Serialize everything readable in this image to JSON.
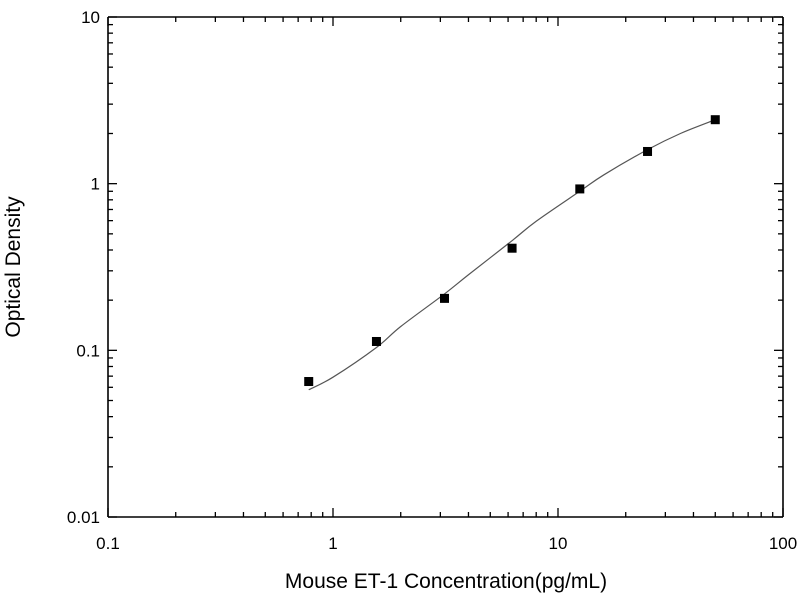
{
  "chart_data": {
    "type": "scatter",
    "title": "",
    "xlabel": "Mouse ET-1 Concentration(pg/mL)",
    "ylabel": "Optical Density",
    "x_scale": "log",
    "y_scale": "log",
    "xlim": [
      0.1,
      100
    ],
    "ylim": [
      0.01,
      10
    ],
    "x_ticks": [
      0.1,
      1,
      10,
      100
    ],
    "x_tick_labels": [
      "0.1",
      "1",
      "10",
      "100"
    ],
    "y_ticks": [
      0.01,
      0.1,
      1,
      10
    ],
    "y_tick_labels": [
      "0.01",
      "0.1",
      "1",
      "10"
    ],
    "grid": false,
    "legend": "none",
    "series": [
      {
        "marker": "square",
        "x": [
          0.78,
          1.56,
          3.13,
          6.25,
          12.5,
          25,
          50
        ],
        "y": [
          0.065,
          0.113,
          0.205,
          0.41,
          0.93,
          1.56,
          2.42
        ]
      }
    ],
    "fit_curve": {
      "type": "sigmoidal fit",
      "x": [
        0.78,
        1.0,
        1.56,
        2.0,
        3.13,
        4.0,
        6.25,
        8.0,
        12.5,
        16.0,
        25,
        35,
        50
      ],
      "y": [
        0.058,
        0.069,
        0.104,
        0.139,
        0.218,
        0.284,
        0.455,
        0.595,
        0.9,
        1.13,
        1.6,
        2.0,
        2.42
      ]
    },
    "colors": {
      "marker": "#000000",
      "curve": "#555555",
      "axis": "#000000"
    }
  }
}
